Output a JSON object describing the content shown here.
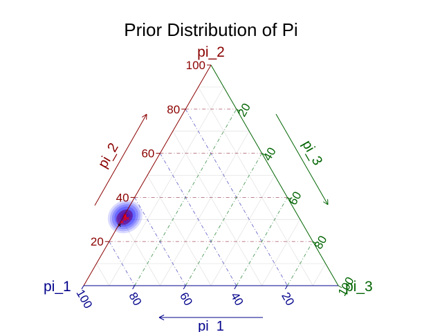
{
  "chart_data": {
    "type": "ternary-density",
    "title": "Prior Distribution of Pi",
    "vertices": {
      "left": "pi_1",
      "top": "pi_2",
      "right": "pi_3"
    },
    "axes": {
      "pi_1": {
        "label": "pi_1",
        "ticks": [
          "100",
          "80",
          "60",
          "40",
          "20"
        ],
        "color": "#00008b"
      },
      "pi_2": {
        "label": "pi_2",
        "ticks": [
          "20",
          "40",
          "60",
          "80",
          "100"
        ],
        "color": "#8b0000"
      },
      "pi_3": {
        "label": "pi_3",
        "ticks": [
          "20",
          "40",
          "60",
          "80",
          "100"
        ],
        "color": "#006400"
      }
    },
    "range": [
      0,
      100
    ],
    "grid": true,
    "density_peak": {
      "pi_1": 69,
      "pi_2": 30,
      "pi_3": 1
    },
    "density_color": "#0000ff",
    "samples": [
      {
        "pi_1": 67.5,
        "pi_2": 30.5,
        "pi_3": 2,
        "color": "#ff0000"
      },
      {
        "pi_1": 68.2,
        "pi_2": 31.2,
        "pi_3": 0.6,
        "color": "#ff0000"
      },
      {
        "pi_1": 68.8,
        "pi_2": 30.1,
        "pi_3": 1.1,
        "color": "#ff0000"
      },
      {
        "pi_1": 67.9,
        "pi_2": 31.8,
        "pi_3": 0.3,
        "color": "#ff0000"
      },
      {
        "pi_1": 70.5,
        "pi_2": 28.9,
        "pi_3": 0.6,
        "color": "#ff0000"
      },
      {
        "pi_1": 72.3,
        "pi_2": 27.4,
        "pi_3": 0.3,
        "color": "#000000"
      }
    ]
  }
}
